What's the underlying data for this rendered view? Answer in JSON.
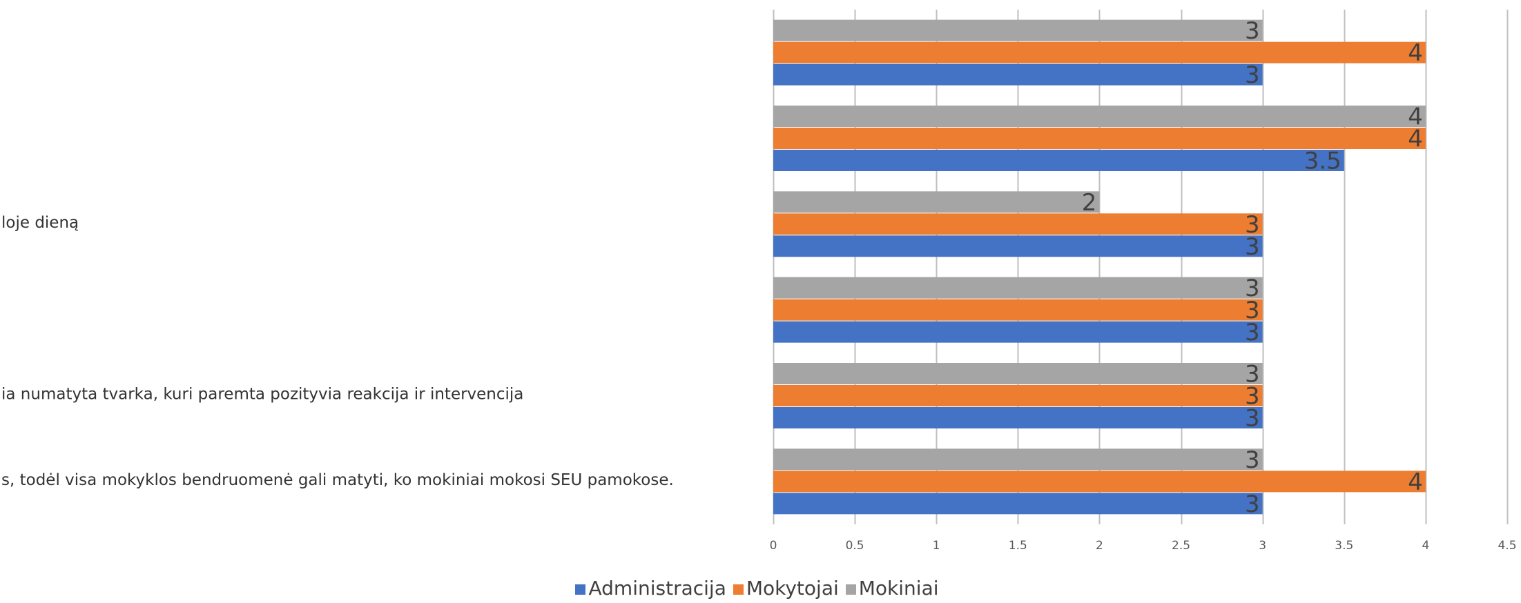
{
  "chart_data": {
    "type": "bar",
    "orientation": "horizontal",
    "categories": [
      "s, todėl visa mokyklos bendruomenė gali matyti, ko mokiniai mokosi SEU pamokose.",
      "ia numatyta tvarka, kuri paremta pozityvia reakcija ir intervencija",
      "",
      "loje dieną",
      "",
      ""
    ],
    "series": [
      {
        "name": "Administracija",
        "color": "#4472C4",
        "values": [
          3,
          3,
          3,
          3,
          3.5,
          3
        ]
      },
      {
        "name": "Mokytojai",
        "color": "#ED7D31",
        "values": [
          4,
          3,
          3,
          3,
          4,
          4
        ]
      },
      {
        "name": "Mokiniai",
        "color": "#A5A5A5",
        "values": [
          3,
          3,
          3,
          2,
          4,
          3
        ]
      }
    ],
    "xlim": [
      0,
      4.5
    ],
    "xticks": [
      "0",
      "0.5",
      "1",
      "1.5",
      "2",
      "2.5",
      "3",
      "3.5",
      "4",
      "4.5"
    ],
    "grid": true,
    "legend_position": "bottom"
  }
}
